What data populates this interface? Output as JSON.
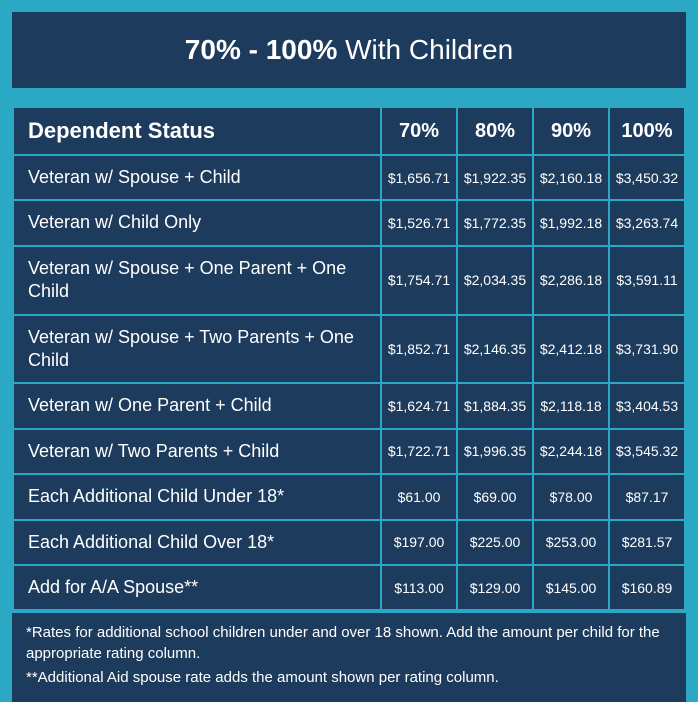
{
  "title": {
    "bold": "70% - 100%",
    "light": "With Children"
  },
  "headers": {
    "status": "Dependent Status",
    "cols": [
      "70%",
      "80%",
      "90%",
      "100%"
    ]
  },
  "rows": [
    {
      "label": "Veteran w/ Spouse + Child",
      "vals": [
        "$1,656.71",
        "$1,922.35",
        "$2,160.18",
        "$3,450.32"
      ]
    },
    {
      "label": "Veteran w/ Child Only",
      "vals": [
        "$1,526.71",
        "$1,772.35",
        "$1,992.18",
        "$3,263.74"
      ]
    },
    {
      "label": "Veteran w/ Spouse + One Parent + One Child",
      "vals": [
        "$1,754.71",
        "$2,034.35",
        "$2,286.18",
        "$3,591.11"
      ]
    },
    {
      "label": "Veteran w/ Spouse + Two Parents + One Child",
      "vals": [
        "$1,852.71",
        "$2,146.35",
        "$2,412.18",
        "$3,731.90"
      ]
    },
    {
      "label": "Veteran w/ One Parent + Child",
      "vals": [
        "$1,624.71",
        "$1,884.35",
        "$2,118.18",
        "$3,404.53"
      ]
    },
    {
      "label": "Veteran w/ Two Parents + Child",
      "vals": [
        "$1,722.71",
        "$1,996.35",
        "$2,244.18",
        "$3,545.32"
      ]
    },
    {
      "label": "Each Additional Child Under 18*",
      "vals": [
        "$61.00",
        "$69.00",
        "$78.00",
        "$87.17"
      ]
    },
    {
      "label": "Each Additional Child Over 18*",
      "vals": [
        "$197.00",
        "$225.00",
        "$253.00",
        "$281.57"
      ]
    },
    {
      "label": "Add for A/A Spouse**",
      "vals": [
        "$113.00",
        "$129.00",
        "$145.00",
        "$160.89"
      ]
    }
  ],
  "footnotes": [
    "*Rates for additional school children under and over 18 shown. Add the amount per child for the appropriate rating column.",
    "**Additional Aid spouse rate adds the amount shown per rating column."
  ],
  "colors": {
    "page_bg": "#2aa8c4",
    "cell_bg": "#1d3b5c",
    "text": "#ffffff"
  }
}
